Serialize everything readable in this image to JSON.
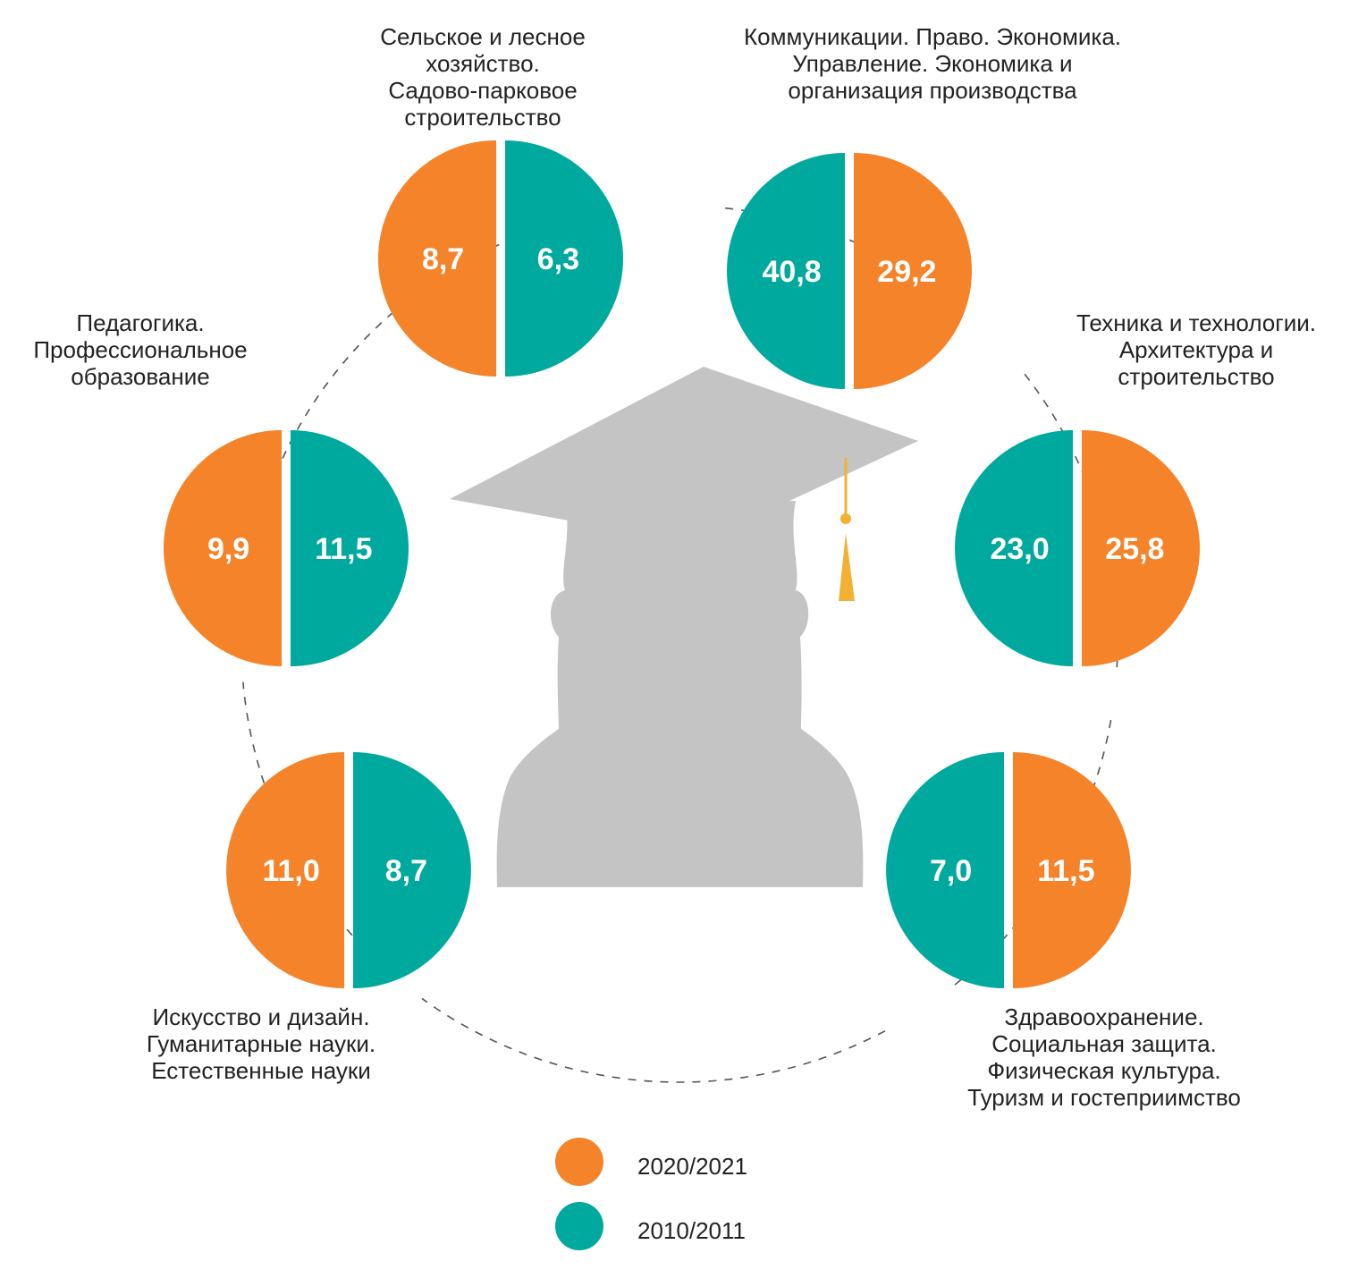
{
  "chart_data": {
    "type": "pie",
    "series": [
      {
        "name": "2020/2021",
        "color": "#F5832A"
      },
      {
        "name": "2010/2011",
        "color": "#00A99D"
      }
    ],
    "categories": [
      {
        "id": "agri",
        "label_lines": [
          "Сельское и лесное",
          "хозяйство.",
          "Садово-парковое",
          "строительство"
        ],
        "values": {
          "2020/2021": "8,7",
          "2010/2011": "6,3"
        },
        "orange_side": "left"
      },
      {
        "id": "comm",
        "label_lines": [
          "Коммуникации. Право. Экономика.",
          "Управление. Экономика и",
          "организация производства"
        ],
        "values": {
          "2020/2021": "29,2",
          "2010/2011": "40,8"
        },
        "orange_side": "right"
      },
      {
        "id": "tech",
        "label_lines": [
          "Техника и технологии.",
          "Архитектура и",
          "строительство"
        ],
        "values": {
          "2020/2021": "25,8",
          "2010/2011": "23,0"
        },
        "orange_side": "right"
      },
      {
        "id": "health",
        "label_lines": [
          "Здравоохранение.",
          "Социальная защита.",
          "Физическая культура.",
          "Туризм и гостеприимство"
        ],
        "values": {
          "2020/2021": "11,5",
          "2010/2011": "7,0"
        },
        "orange_side": "right"
      },
      {
        "id": "arts",
        "label_lines": [
          "Искусство и дизайн.",
          "Гуманитарные науки.",
          "Естественные науки"
        ],
        "values": {
          "2020/2021": "11,0",
          "2010/2011": "8,7"
        },
        "orange_side": "left"
      },
      {
        "id": "ped",
        "label_lines": [
          "Педагогика.",
          "Профессиональное",
          "образование"
        ],
        "values": {
          "2020/2021": "9,9",
          "2010/2011": "11,5"
        },
        "orange_side": "left"
      }
    ],
    "legend": {
      "placement": "bottom-center",
      "items": [
        {
          "label": "2020/2021",
          "color": "#F5832A"
        },
        {
          "label": "2010/2011",
          "color": "#00A99D"
        }
      ]
    },
    "decoration": {
      "center_icon": "graduate-silhouette-icon",
      "silhouette_color": "#C4C4C4",
      "tassel_color": "#F2B132",
      "connector_style": "dashed"
    }
  }
}
